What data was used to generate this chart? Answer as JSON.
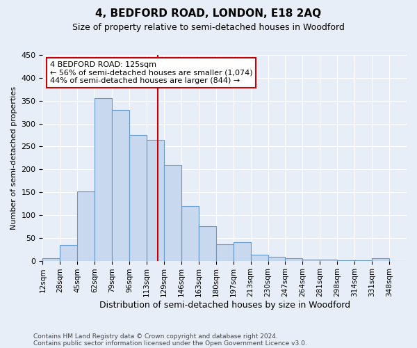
{
  "title": "4, BEDFORD ROAD, LONDON, E18 2AQ",
  "subtitle": "Size of property relative to semi-detached houses in Woodford",
  "xlabel": "Distribution of semi-detached houses by size in Woodford",
  "ylabel": "Number of semi-detached properties",
  "footer1": "Contains HM Land Registry data © Crown copyright and database right 2024.",
  "footer2": "Contains public sector information licensed under the Open Government Licence v3.0.",
  "annotation_line1": "4 BEDFORD ROAD: 125sqm",
  "annotation_line2": "← 56% of semi-detached houses are smaller (1,074)",
  "annotation_line3": "44% of semi-detached houses are larger (844) →",
  "property_size": 125,
  "bar_color": "#c8d8ee",
  "bar_edge_color": "#6699cc",
  "vline_color": "#cc0000",
  "background_color": "#e8eef8",
  "categories": [
    "12sqm",
    "28sqm",
    "45sqm",
    "62sqm",
    "79sqm",
    "96sqm",
    "113sqm",
    "129sqm",
    "146sqm",
    "163sqm",
    "180sqm",
    "197sqm",
    "213sqm",
    "230sqm",
    "247sqm",
    "264sqm",
    "281sqm",
    "298sqm",
    "314sqm",
    "331sqm",
    "348sqm"
  ],
  "values": [
    5,
    35,
    152,
    355,
    330,
    275,
    265,
    210,
    120,
    75,
    36,
    40,
    13,
    9,
    6,
    2,
    2,
    1,
    1,
    5,
    0
  ],
  "bin_width": 17,
  "n_bins": 21,
  "ylim": [
    0,
    450
  ],
  "yticks": [
    0,
    50,
    100,
    150,
    200,
    250,
    300,
    350,
    400,
    450
  ],
  "annotation_box_color": "#ffffff",
  "annotation_box_edge": "#cc0000",
  "grid_color": "#ffffff",
  "title_fontsize": 11,
  "subtitle_fontsize": 9,
  "ylabel_fontsize": 8,
  "xlabel_fontsize": 9,
  "tick_fontsize": 8,
  "footer_fontsize": 6.5
}
